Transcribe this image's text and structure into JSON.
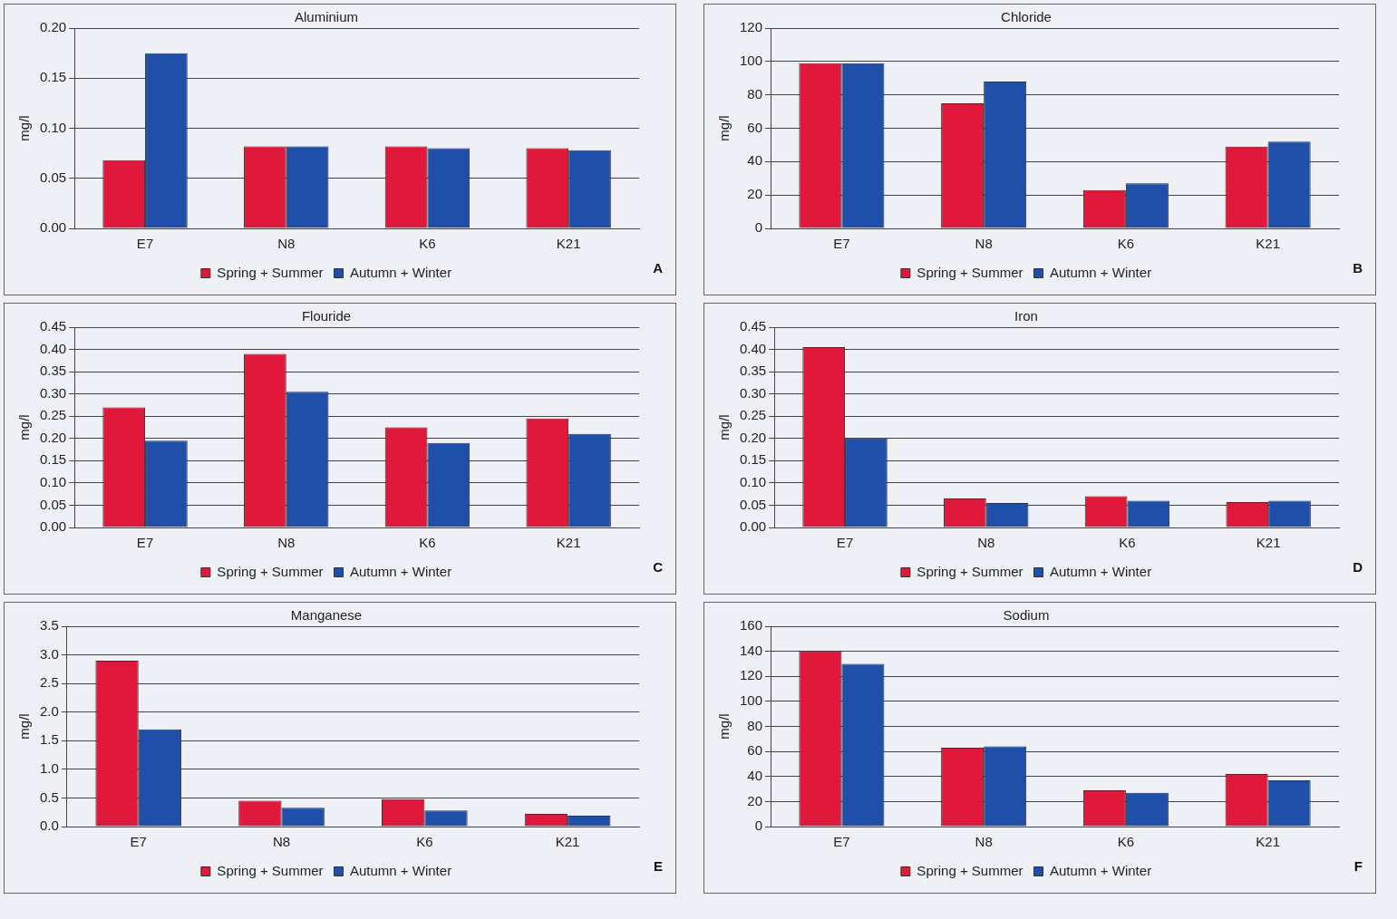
{
  "chart_data": [
    {
      "type": "bar",
      "title": "Aluminium",
      "ylabel": "mg/l",
      "categories": [
        "E7",
        "N8",
        "K6",
        "K21"
      ],
      "series": [
        {
          "name": "Spring + Summer",
          "color": "#e0183c",
          "values": [
            0.068,
            0.082,
            0.082,
            0.08
          ]
        },
        {
          "name": "Autumn + Winter",
          "color": "#1f4fa8",
          "values": [
            0.175,
            0.082,
            0.08,
            0.078
          ]
        }
      ],
      "ylim": [
        0,
        0.2
      ],
      "yticks": [
        {
          "value": 0,
          "label": "0.00"
        },
        {
          "value": 0.05,
          "label": "0.05"
        },
        {
          "value": 0.1,
          "label": "0.10"
        },
        {
          "value": 0.15,
          "label": "0.15"
        },
        {
          "value": 0.2,
          "label": "0.20"
        }
      ],
      "grid": "y",
      "legend": "bottom",
      "annotations": [
        "A"
      ]
    },
    {
      "type": "bar",
      "title": "Chloride",
      "ylabel": "mg/l",
      "categories": [
        "E7",
        "N8",
        "K6",
        "K21"
      ],
      "series": [
        {
          "name": "Spring + Summer",
          "color": "#e0183c",
          "values": [
            99,
            75,
            23,
            49
          ]
        },
        {
          "name": "Autumn + Winter",
          "color": "#1f4fa8",
          "values": [
            99,
            88,
            27,
            52
          ]
        }
      ],
      "ylim": [
        0,
        120
      ],
      "yticks": [
        0,
        20,
        40,
        60,
        80,
        100,
        120
      ],
      "grid": "y",
      "legend": "bottom",
      "annotations": [
        "B"
      ]
    },
    {
      "type": "bar",
      "title": "Flouride",
      "ylabel": "mg/l",
      "categories": [
        "E7",
        "N8",
        "K6",
        "K21"
      ],
      "series": [
        {
          "name": "Spring + Summer",
          "color": "#e0183c",
          "values": [
            0.27,
            0.39,
            0.225,
            0.245
          ]
        },
        {
          "name": "Autumn + Winter",
          "color": "#1f4fa8",
          "values": [
            0.195,
            0.305,
            0.19,
            0.21
          ]
        }
      ],
      "ylim": [
        0,
        0.45
      ],
      "yticks": [
        {
          "value": 0,
          "label": "0.00"
        },
        {
          "value": 0.05,
          "label": "0.05"
        },
        {
          "value": 0.1,
          "label": "0.10"
        },
        {
          "value": 0.15,
          "label": "0.15"
        },
        {
          "value": 0.2,
          "label": "0.20"
        },
        {
          "value": 0.25,
          "label": "0.25"
        },
        {
          "value": 0.3,
          "label": "0.30"
        },
        {
          "value": 0.35,
          "label": "0.35"
        },
        {
          "value": 0.4,
          "label": "0.40"
        },
        {
          "value": 0.45,
          "label": "0.45"
        }
      ],
      "grid": "y",
      "legend": "bottom",
      "annotations": [
        "C"
      ]
    },
    {
      "type": "bar",
      "title": "Iron",
      "ylabel": "mg/l",
      "categories": [
        "E7",
        "N8",
        "K6",
        "K21"
      ],
      "series": [
        {
          "name": "Spring + Summer",
          "color": "#e0183c",
          "values": [
            0.405,
            0.065,
            0.07,
            0.057
          ]
        },
        {
          "name": "Autumn + Winter",
          "color": "#1f4fa8",
          "values": [
            0.2,
            0.055,
            0.06,
            0.06
          ]
        }
      ],
      "ylim": [
        0,
        0.45
      ],
      "yticks": [
        {
          "value": 0,
          "label": "0.00"
        },
        {
          "value": 0.05,
          "label": "0.05"
        },
        {
          "value": 0.1,
          "label": "0.10"
        },
        {
          "value": 0.15,
          "label": "0.15"
        },
        {
          "value": 0.2,
          "label": "0.20"
        },
        {
          "value": 0.25,
          "label": "0.25"
        },
        {
          "value": 0.3,
          "label": "0.30"
        },
        {
          "value": 0.35,
          "label": "0.35"
        },
        {
          "value": 0.4,
          "label": "0.40"
        },
        {
          "value": 0.45,
          "label": "0.45"
        }
      ],
      "grid": "y",
      "legend": "bottom",
      "annotations": [
        "D"
      ]
    },
    {
      "type": "bar",
      "title": "Manganese",
      "ylabel": "mg/l",
      "categories": [
        "E7",
        "N8",
        "K6",
        "K21"
      ],
      "series": [
        {
          "name": "Spring + Summer",
          "color": "#e0183c",
          "values": [
            2.9,
            0.45,
            0.48,
            0.22
          ]
        },
        {
          "name": "Autumn + Winter",
          "color": "#1f4fa8",
          "values": [
            1.7,
            0.33,
            0.28,
            0.19
          ]
        }
      ],
      "ylim": [
        0,
        3.5
      ],
      "yticks": [
        {
          "value": 0,
          "label": "0.0"
        },
        {
          "value": 0.5,
          "label": "0.5"
        },
        {
          "value": 1,
          "label": "1.0"
        },
        {
          "value": 1.5,
          "label": "1.5"
        },
        {
          "value": 2,
          "label": "2.0"
        },
        {
          "value": 2.5,
          "label": "2.5"
        },
        {
          "value": 3,
          "label": "3.0"
        },
        {
          "value": 3.5,
          "label": "3.5"
        }
      ],
      "grid": "y",
      "legend": "bottom",
      "annotations": [
        "E"
      ]
    },
    {
      "type": "bar",
      "title": "Sodium",
      "ylabel": "mg/l",
      "categories": [
        "E7",
        "N8",
        "K6",
        "K21"
      ],
      "series": [
        {
          "name": "Spring + Summer",
          "color": "#e0183c",
          "values": [
            140,
            63,
            29,
            42
          ]
        },
        {
          "name": "Autumn + Winter",
          "color": "#1f4fa8",
          "values": [
            130,
            64,
            27,
            37
          ]
        }
      ],
      "ylim": [
        0,
        160
      ],
      "yticks": [
        0,
        20,
        40,
        60,
        80,
        100,
        120,
        140,
        160
      ],
      "grid": "y",
      "legend": "bottom",
      "annotations": [
        "F"
      ]
    }
  ]
}
